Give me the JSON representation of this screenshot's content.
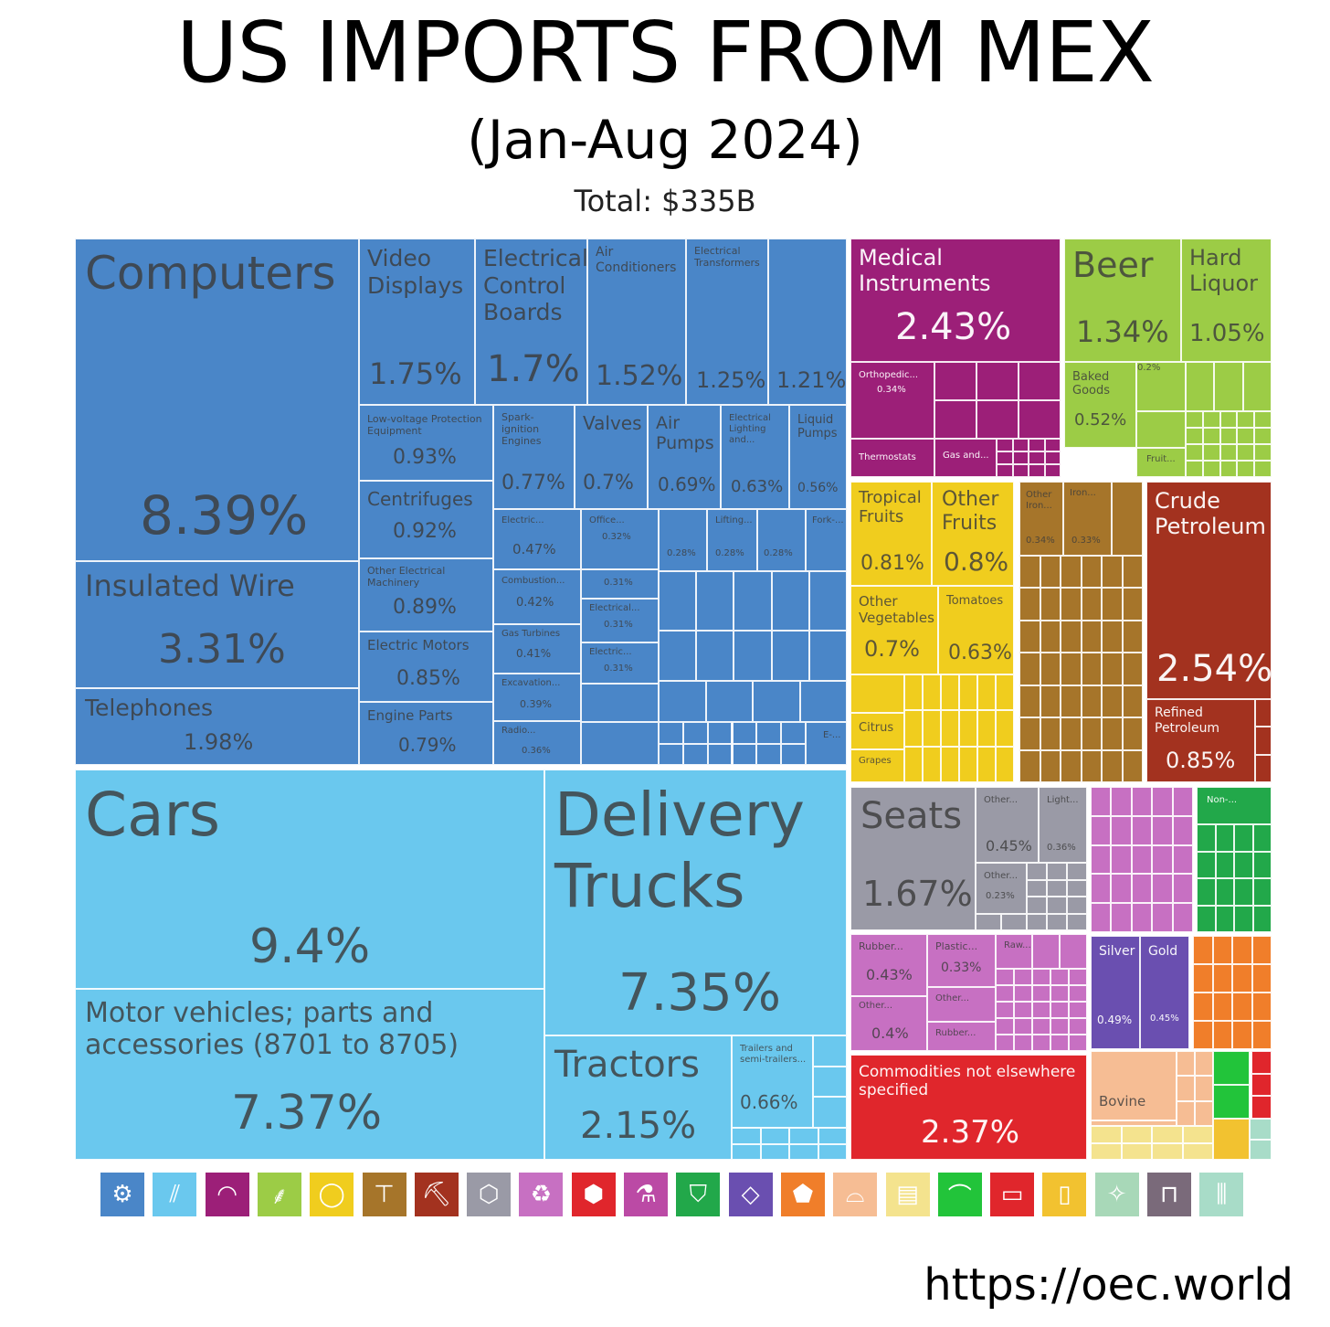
{
  "header": {
    "title": "US IMPORTS FROM MEX",
    "subtitle": "(Jan-Aug 2024)",
    "total": "Total: $335B"
  },
  "source": "https://oec.world",
  "chart_data": {
    "type": "treemap",
    "title": "US IMPORTS FROM MEX",
    "subtitle": "(Jan-Aug 2024)",
    "total": "Total: $335B",
    "value_unit": "% of total imports",
    "sectors": [
      {
        "name": "Machines",
        "color": "#4a86c8",
        "items": [
          {
            "label": "Computers",
            "value": "8.39%"
          },
          {
            "label": "Insulated Wire",
            "value": "3.31%"
          },
          {
            "label": "Telephones",
            "value": "1.98%"
          },
          {
            "label": "Video Displays",
            "value": "1.75%"
          },
          {
            "label": "Electrical Control Boards",
            "value": "1.7%"
          },
          {
            "label": "Air Conditioners",
            "value": "1.52%"
          },
          {
            "label": "Electrical Transformers",
            "value": "1.25%"
          },
          {
            "label": "",
            "value": "1.21%"
          },
          {
            "label": "Low-voltage Protection Equipment",
            "value": "0.93%"
          },
          {
            "label": "Centrifuges",
            "value": "0.92%"
          },
          {
            "label": "Other Electrical Machinery",
            "value": "0.89%"
          },
          {
            "label": "Electric Motors",
            "value": "0.85%"
          },
          {
            "label": "Engine Parts",
            "value": "0.79%"
          },
          {
            "label": "Spark-ignition Engines",
            "value": "0.77%"
          },
          {
            "label": "Valves",
            "value": "0.7%"
          },
          {
            "label": "Air Pumps",
            "value": "0.69%"
          },
          {
            "label": "Electrical Lighting and...",
            "value": "0.63%"
          },
          {
            "label": "Liquid Pumps",
            "value": "0.56%"
          },
          {
            "label": "Electric...",
            "value": "0.47%"
          },
          {
            "label": "Combustion...",
            "value": "0.42%"
          },
          {
            "label": "Gas Turbines",
            "value": "0.41%"
          },
          {
            "label": "Excavation...",
            "value": "0.39%"
          },
          {
            "label": "Radio...",
            "value": "0.36%"
          },
          {
            "label": "Office...",
            "value": "0.32%"
          },
          {
            "label": "",
            "value": "0.31%"
          },
          {
            "label": "Electrical...",
            "value": "0.31%"
          },
          {
            "label": "Electric...",
            "value": "0.31%"
          },
          {
            "label": "",
            "value": "0.28%"
          },
          {
            "label": "Lifting...",
            "value": "0.28%"
          },
          {
            "label": "",
            "value": "0.28%"
          },
          {
            "label": "Fork-...",
            "value": ""
          },
          {
            "label": "E-...",
            "value": ""
          }
        ]
      },
      {
        "name": "Transportation",
        "color": "#6ac8ee",
        "items": [
          {
            "label": "Cars",
            "value": "9.4%"
          },
          {
            "label": "Motor vehicles; parts and accessories (8701 to 8705)",
            "value": "7.37%"
          },
          {
            "label": "Delivery Trucks",
            "value": "7.35%"
          },
          {
            "label": "Tractors",
            "value": "2.15%"
          },
          {
            "label": "Trailers and semi-trailers...",
            "value": "0.66%"
          }
        ]
      },
      {
        "name": "Instruments",
        "color": "#9c1f78",
        "items": [
          {
            "label": "Medical Instruments",
            "value": "2.43%"
          },
          {
            "label": "Orthopedic...",
            "value": "0.34%"
          },
          {
            "label": "Thermostats",
            "value": ""
          },
          {
            "label": "Gas and...",
            "value": ""
          }
        ]
      },
      {
        "name": "Foodstuffs",
        "color": "#9ccc46",
        "items": [
          {
            "label": "Beer",
            "value": "1.34%"
          },
          {
            "label": "Hard Liquor",
            "value": "1.05%"
          },
          {
            "label": "Baked Goods",
            "value": "0.52%"
          },
          {
            "label": "",
            "value": "0.2%"
          },
          {
            "label": "Fruit...",
            "value": ""
          }
        ]
      },
      {
        "name": "Vegetable Products",
        "color": "#f0cd1e",
        "items": [
          {
            "label": "Tropical Fruits",
            "value": "0.81%"
          },
          {
            "label": "Other Fruits",
            "value": "0.8%"
          },
          {
            "label": "Other Vegetables",
            "value": "0.7%"
          },
          {
            "label": "Tomatoes",
            "value": "0.63%"
          },
          {
            "label": "Citrus",
            "value": ""
          },
          {
            "label": "Grapes",
            "value": ""
          }
        ]
      },
      {
        "name": "Metals",
        "color": "#a6752a",
        "items": [
          {
            "label": "Other Iron...",
            "value": "0.34%"
          },
          {
            "label": "Iron...",
            "value": "0.33%"
          }
        ]
      },
      {
        "name": "Mineral Products",
        "color": "#a3321f",
        "items": [
          {
            "label": "Crude Petroleum",
            "value": "2.54%"
          },
          {
            "label": "Refined Petroleum",
            "value": "0.85%"
          }
        ]
      },
      {
        "name": "Miscellaneous",
        "color": "#9a9aa6",
        "items": [
          {
            "label": "Seats",
            "value": "1.67%"
          },
          {
            "label": "Other...",
            "value": "0.45%"
          },
          {
            "label": "Light...",
            "value": "0.36%"
          },
          {
            "label": "Other...",
            "value": "0.23%"
          }
        ]
      },
      {
        "name": "Plastics and Rubbers",
        "color": "#c770c2",
        "items": [
          {
            "label": "Rubber...",
            "value": "0.43%"
          },
          {
            "label": "Plastic...",
            "value": "0.33%"
          },
          {
            "label": "Raw...",
            "value": ""
          },
          {
            "label": "Other...",
            "value": "0.4%"
          },
          {
            "label": "Other...",
            "value": ""
          },
          {
            "label": "Rubber...",
            "value": ""
          }
        ]
      },
      {
        "name": "Precious Metals",
        "color": "#6a4fb0",
        "items": [
          {
            "label": "Silver",
            "value": "0.49%"
          },
          {
            "label": "Gold",
            "value": "0.45%"
          }
        ]
      },
      {
        "name": "Other",
        "color": "#e0262c",
        "items": [
          {
            "label": "Commodities not elsewhere specified",
            "value": "2.37%"
          }
        ]
      },
      {
        "name": "Textiles",
        "color": "#22a84a",
        "items": [
          {
            "label": "Non-...",
            "value": ""
          }
        ]
      },
      {
        "name": "Stone and Glass",
        "color": "#f07e2a",
        "items": []
      },
      {
        "name": "Animal Products",
        "color": "#f6bd94",
        "items": [
          {
            "label": "Bovine",
            "value": ""
          }
        ]
      },
      {
        "name": "Paper Goods",
        "color": "#f4e38e",
        "items": []
      }
    ],
    "legend": [
      {
        "name": "gear-icon",
        "color": "#4a86c8"
      },
      {
        "name": "road-icon",
        "color": "#6ac8ee"
      },
      {
        "name": "gauge-icon",
        "color": "#9c1f78"
      },
      {
        "name": "wheat-icon",
        "color": "#9ccc46"
      },
      {
        "name": "fruit-icon",
        "color": "#f0cd1e"
      },
      {
        "name": "anvil-icon",
        "color": "#a6752a"
      },
      {
        "name": "pickaxe-icon",
        "color": "#a3321f"
      },
      {
        "name": "box-icon",
        "color": "#9a9aa6"
      },
      {
        "name": "recycle-icon",
        "color": "#c770c2"
      },
      {
        "name": "package-icon",
        "color": "#e0262c"
      },
      {
        "name": "flask-icon",
        "color": "#bb4aa5"
      },
      {
        "name": "shirt-icon",
        "color": "#22a84a"
      },
      {
        "name": "diamond-icon",
        "color": "#6a4fb0"
      },
      {
        "name": "stone-icon",
        "color": "#f07e2a"
      },
      {
        "name": "animal-icon",
        "color": "#f6bd94"
      },
      {
        "name": "paper-icon",
        "color": "#f4e38e"
      },
      {
        "name": "shoe-icon",
        "color": "#22c43a"
      },
      {
        "name": "ticket-icon",
        "color": "#e0262c"
      },
      {
        "name": "jar-icon",
        "color": "#f2c230"
      },
      {
        "name": "hide-icon",
        "color": "#a8d8b8"
      },
      {
        "name": "easel-icon",
        "color": "#7a6a7a"
      },
      {
        "name": "bottles-icon",
        "color": "#a8dcc8"
      }
    ]
  }
}
